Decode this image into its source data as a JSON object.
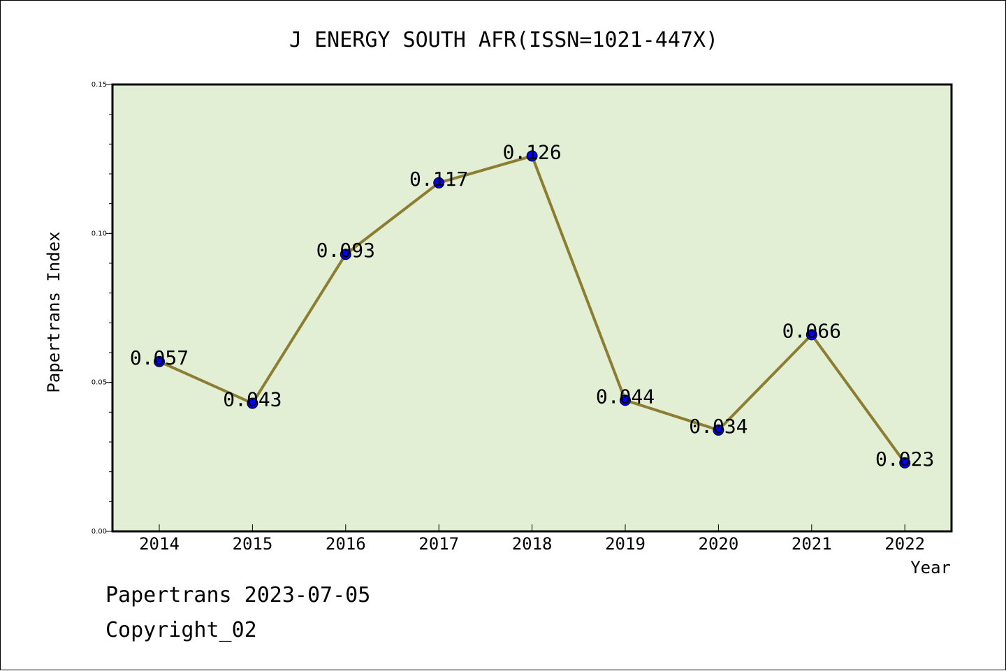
{
  "chart_data": {
    "type": "line",
    "title": "J ENERGY SOUTH AFR(ISSN=1021-447X)",
    "xlabel": "Year",
    "ylabel": "Papertrans Index",
    "categories": [
      "2014",
      "2015",
      "2016",
      "2017",
      "2018",
      "2019",
      "2020",
      "2021",
      "2022"
    ],
    "values": [
      0.057,
      0.043,
      0.093,
      0.117,
      0.126,
      0.044,
      0.034,
      0.066,
      0.023
    ],
    "data_labels": [
      "0.057",
      "0.043",
      "0.093",
      "0.117",
      "0.126",
      "0.044",
      "0.034",
      "0.066",
      "0.023"
    ],
    "ylim": [
      0.0,
      0.15
    ],
    "yticks": [
      "0.00",
      "0.05",
      "0.10",
      "0.15"
    ],
    "ytick_values": [
      0.0,
      0.05,
      0.1,
      0.15
    ],
    "line_color": "#8B7D32",
    "marker_color": "#0000FF",
    "plot_background": "#E2EFD5",
    "grid": false
  },
  "footer": {
    "date_line": "Papertrans 2023-07-05",
    "copyright_line": "Copyright_02"
  }
}
